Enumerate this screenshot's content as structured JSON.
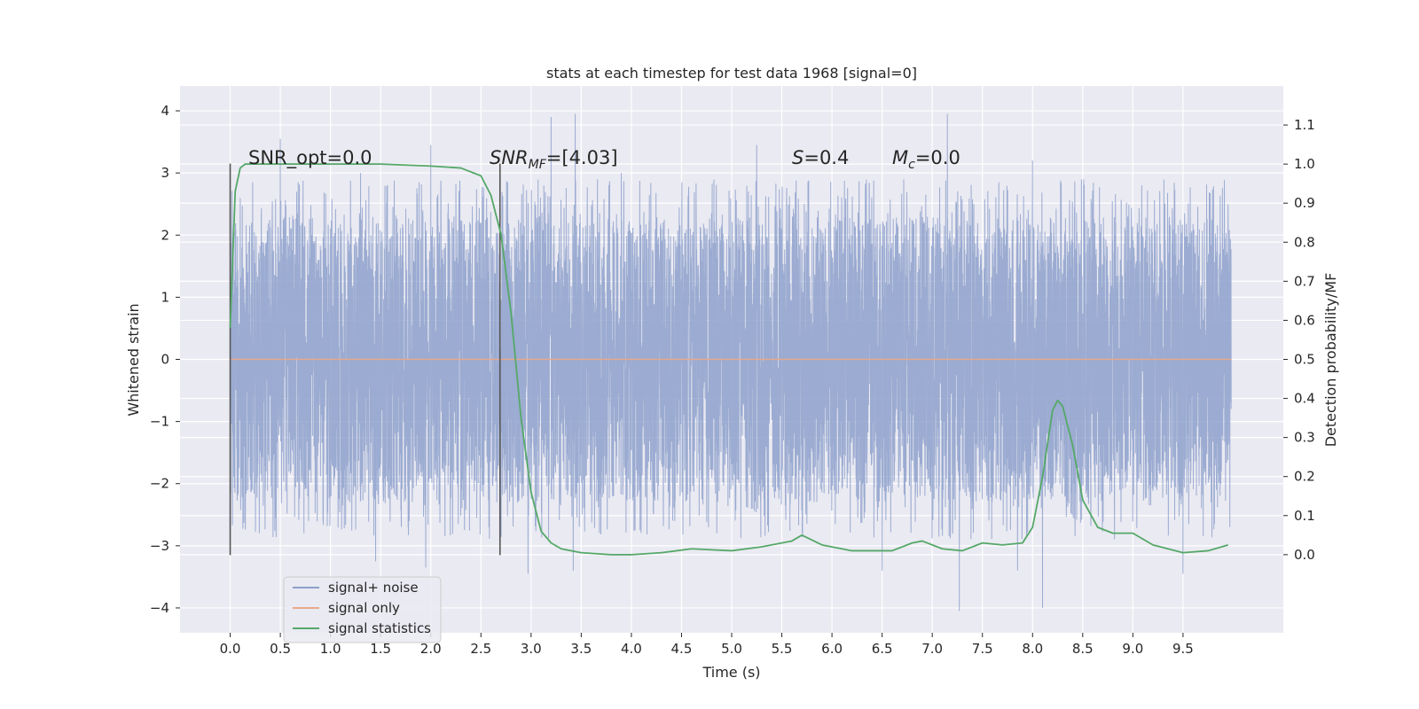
{
  "chart_data": {
    "type": "line",
    "title": "stats at each timestep for test data 1968 [signal=0]",
    "xlabel": "Time (s)",
    "ylabel": "Whitened strain",
    "y2label": "Detection probability/MF",
    "xlim": [
      -0.5,
      10.5
    ],
    "ylim": [
      -4.4,
      4.4
    ],
    "y2lim": [
      -0.2,
      1.2
    ],
    "xticks": [
      "0.0",
      "0.5",
      "1.0",
      "1.5",
      "2.0",
      "2.5",
      "3.0",
      "3.5",
      "4.0",
      "4.5",
      "5.0",
      "5.5",
      "6.0",
      "6.5",
      "7.0",
      "7.5",
      "8.0",
      "8.5",
      "9.0",
      "9.5"
    ],
    "yticks": [
      "4",
      "3",
      "2",
      "1",
      "0",
      "−1",
      "−2",
      "−3",
      "−4"
    ],
    "y2ticks": [
      "1.1",
      "1.0",
      "0.9",
      "0.8",
      "0.7",
      "0.6",
      "0.5",
      "0.4",
      "0.3",
      "0.2",
      "0.1",
      "0.0"
    ],
    "grid": true,
    "legend": {
      "placement": "lower-left",
      "entries": [
        {
          "label": "signal+ noise",
          "color": "#8da0cb"
        },
        {
          "label": "signal only",
          "color": "#e8a88a"
        },
        {
          "label": "signal statistics",
          "color": "#55a868"
        }
      ]
    },
    "annotations": {
      "snr_opt": "SNR_opt=0.0",
      "snr_mf_sym": "SNR",
      "snr_mf_sub": "MF",
      "snr_mf_val": "=[4.03]",
      "s_sym": "S",
      "s_val": "=0.4",
      "mc_sym": "M",
      "mc_sub": "c",
      "mc_val": "=0.0"
    },
    "vlines_x": [
      0.0,
      2.69
    ],
    "vline_range": [
      -3.15,
      3.15
    ],
    "noise": {
      "name": "signal+ noise",
      "x_range": [
        0.0,
        9.98
      ],
      "core_band": [
        -1.3,
        1.3
      ],
      "typical_range": [
        -2.3,
        2.3
      ],
      "spikes": [
        {
          "x": 0.5,
          "y": 3.55
        },
        {
          "x": 1.3,
          "y": 3.0
        },
        {
          "x": 2.0,
          "y": 3.45
        },
        {
          "x": 3.2,
          "y": 3.9
        },
        {
          "x": 3.44,
          "y": 3.95
        },
        {
          "x": 3.9,
          "y": 3.0
        },
        {
          "x": 5.25,
          "y": 3.45
        },
        {
          "x": 7.15,
          "y": 3.95
        },
        {
          "x": 8.0,
          "y": 3.2
        },
        {
          "x": 1.45,
          "y": -3.25
        },
        {
          "x": 1.95,
          "y": -3.35
        },
        {
          "x": 2.97,
          "y": -3.45
        },
        {
          "x": 3.42,
          "y": -3.4
        },
        {
          "x": 6.5,
          "y": -3.4
        },
        {
          "x": 7.27,
          "y": -4.05
        },
        {
          "x": 7.85,
          "y": -3.4
        },
        {
          "x": 8.1,
          "y": -4.0
        },
        {
          "x": 9.5,
          "y": -3.45
        }
      ]
    },
    "signal_only": {
      "name": "signal only",
      "x": [
        0.0,
        9.98
      ],
      "y": [
        0.0,
        0.0
      ]
    },
    "statistics": {
      "name": "signal statistics",
      "axis": "right",
      "x": [
        0.0,
        0.05,
        0.1,
        0.15,
        0.2,
        0.3,
        0.5,
        1.0,
        1.5,
        2.0,
        2.3,
        2.5,
        2.6,
        2.7,
        2.8,
        2.9,
        3.0,
        3.1,
        3.2,
        3.3,
        3.5,
        3.8,
        4.0,
        4.3,
        4.6,
        5.0,
        5.3,
        5.6,
        5.7,
        5.9,
        6.2,
        6.6,
        6.8,
        6.9,
        7.1,
        7.3,
        7.5,
        7.7,
        7.9,
        8.0,
        8.1,
        8.2,
        8.25,
        8.3,
        8.4,
        8.5,
        8.65,
        8.8,
        9.0,
        9.2,
        9.5,
        9.75,
        9.95
      ],
      "y": [
        0.58,
        0.93,
        0.99,
        1.0,
        1.0,
        1.0,
        1.0,
        1.0,
        1.0,
        0.995,
        0.99,
        0.97,
        0.92,
        0.82,
        0.62,
        0.35,
        0.16,
        0.06,
        0.03,
        0.015,
        0.005,
        0.0,
        0.0,
        0.005,
        0.015,
        0.01,
        0.02,
        0.035,
        0.05,
        0.025,
        0.01,
        0.01,
        0.03,
        0.035,
        0.015,
        0.01,
        0.03,
        0.025,
        0.03,
        0.07,
        0.2,
        0.37,
        0.395,
        0.38,
        0.28,
        0.14,
        0.07,
        0.055,
        0.055,
        0.025,
        0.005,
        0.01,
        0.025
      ]
    }
  }
}
